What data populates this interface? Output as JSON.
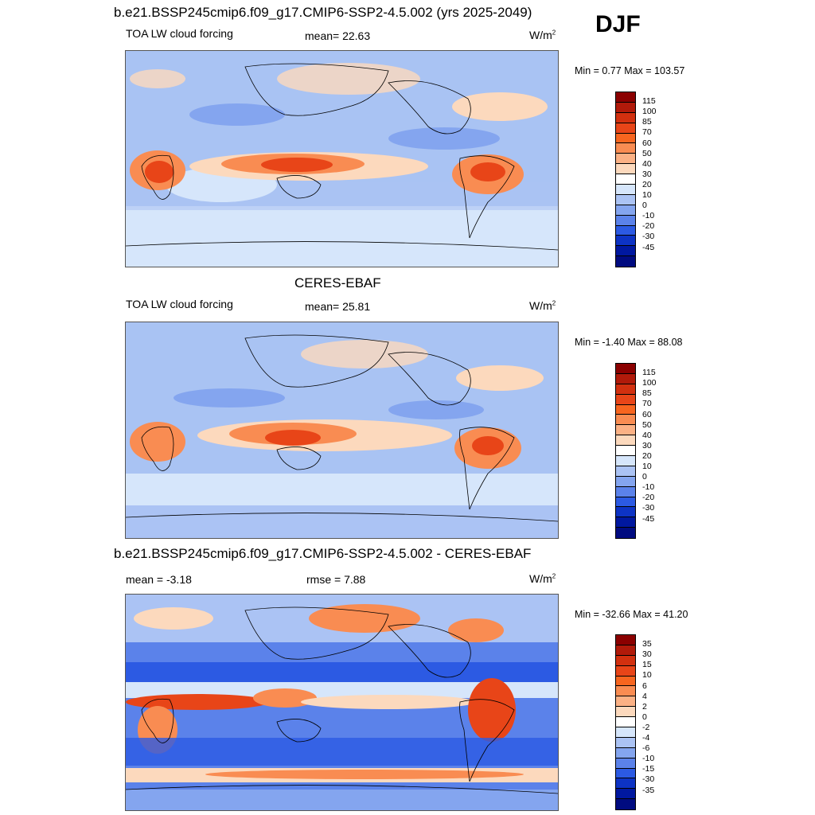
{
  "season": "DJF",
  "panels": [
    {
      "title": "b.e21.BSSP245cmip6.f09_g17.CMIP6-SSP2-4.5.002 (yrs 2025-2049)",
      "variable": "TOA LW cloud forcing",
      "stat1": "mean=  22.63",
      "stat2": "",
      "units": "W/m",
      "units_sup": "2",
      "minmax": "Min =   0.77 Max = 103.57",
      "colorbar_labels": [
        "115",
        "100",
        "85",
        "70",
        "60",
        "50",
        "40",
        "30",
        "20",
        "10",
        "0",
        "-10",
        "-20",
        "-30",
        "-45"
      ],
      "colorbar_colors": [
        "#8b0000",
        "#b11a0a",
        "#d2300f",
        "#e84518",
        "#f7651f",
        "#f98c52",
        "#fbb185",
        "#fcd9bd",
        "#ffffff",
        "#d6e6fb",
        "#abc3f4",
        "#84a5ef",
        "#5b82ea",
        "#2c5ae3",
        "#0d33c4",
        "#0018a0",
        "#000b80"
      ]
    },
    {
      "title": "CERES-EBAF",
      "variable": "TOA LW cloud forcing",
      "stat1": "mean=  25.81",
      "stat2": "",
      "units": "W/m",
      "units_sup": "2",
      "minmax": "Min =  -1.40 Max =  88.08",
      "colorbar_labels": [
        "115",
        "100",
        "85",
        "70",
        "60",
        "50",
        "40",
        "30",
        "20",
        "10",
        "0",
        "-10",
        "-20",
        "-30",
        "-45"
      ],
      "colorbar_colors": [
        "#8b0000",
        "#b11a0a",
        "#d2300f",
        "#e84518",
        "#f7651f",
        "#f98c52",
        "#fbb185",
        "#fcd9bd",
        "#ffffff",
        "#d6e6fb",
        "#abc3f4",
        "#84a5ef",
        "#5b82ea",
        "#2c5ae3",
        "#0d33c4",
        "#0018a0",
        "#000b80"
      ]
    },
    {
      "title": "b.e21.BSSP245cmip6.f09_g17.CMIP6-SSP2-4.5.002 - CERES-EBAF",
      "variable": "",
      "stat1": "mean =  -3.18",
      "stat2": "rmse =   7.88",
      "units": "W/m",
      "units_sup": "2",
      "minmax": "Min = -32.66 Max =  41.20",
      "colorbar_labels": [
        "35",
        "30",
        "15",
        "10",
        "6",
        "4",
        "2",
        "0",
        "-2",
        "-4",
        "-6",
        "-10",
        "-15",
        "-30",
        "-35"
      ],
      "colorbar_colors": [
        "#8b0000",
        "#b11a0a",
        "#d2300f",
        "#e84518",
        "#f7651f",
        "#f98c52",
        "#fbb185",
        "#fcd9bd",
        "#ffffff",
        "#d6e6fb",
        "#abc3f4",
        "#84a5ef",
        "#5b82ea",
        "#2c5ae3",
        "#0d33c4",
        "#0018a0",
        "#000b80"
      ]
    }
  ]
}
